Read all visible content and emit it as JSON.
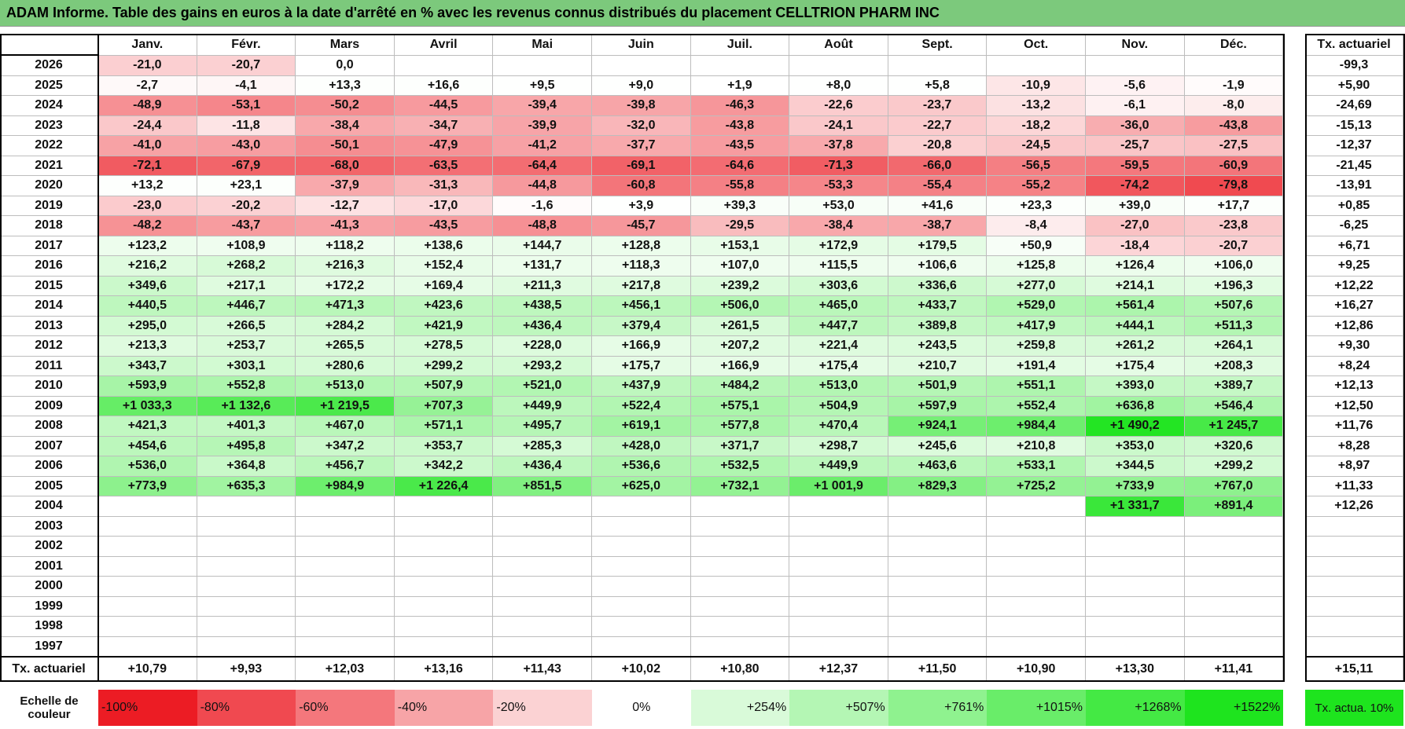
{
  "title": "ADAM Informe. Table des gains en euros à la date d'arrêté en % avec les revenus connus distribués du placement CELLTRION PHARM INC",
  "months": [
    "Janv.",
    "Févr.",
    "Mars",
    "Avril",
    "Mai",
    "Juin",
    "Juil.",
    "Août",
    "Sept.",
    "Oct.",
    "Nov.",
    "Déc."
  ],
  "tx_header": "Tx. actuariel",
  "rows": [
    {
      "year": "2026",
      "values": [
        "-21,0",
        "-20,7",
        "0,0",
        null,
        null,
        null,
        null,
        null,
        null,
        null,
        null,
        null
      ],
      "tx": "-99,3"
    },
    {
      "year": "2025",
      "values": [
        "-2,7",
        "-4,1",
        "+13,3",
        "+16,6",
        "+9,5",
        "+9,0",
        "+1,9",
        "+8,0",
        "+5,8",
        "-10,9",
        "-5,6",
        "-1,9"
      ],
      "tx": "+5,90"
    },
    {
      "year": "2024",
      "values": [
        "-48,9",
        "-53,1",
        "-50,2",
        "-44,5",
        "-39,4",
        "-39,8",
        "-46,3",
        "-22,6",
        "-23,7",
        "-13,2",
        "-6,1",
        "-8,0"
      ],
      "tx": "-24,69"
    },
    {
      "year": "2023",
      "values": [
        "-24,4",
        "-11,8",
        "-38,4",
        "-34,7",
        "-39,9",
        "-32,0",
        "-43,8",
        "-24,1",
        "-22,7",
        "-18,2",
        "-36,0",
        "-43,8"
      ],
      "tx": "-15,13"
    },
    {
      "year": "2022",
      "values": [
        "-41,0",
        "-43,0",
        "-50,1",
        "-47,9",
        "-41,2",
        "-37,7",
        "-43,5",
        "-37,8",
        "-20,8",
        "-24,5",
        "-25,7",
        "-27,5"
      ],
      "tx": "-12,37"
    },
    {
      "year": "2021",
      "values": [
        "-72,1",
        "-67,9",
        "-68,0",
        "-63,5",
        "-64,4",
        "-69,1",
        "-64,6",
        "-71,3",
        "-66,0",
        "-56,5",
        "-59,5",
        "-60,9"
      ],
      "tx": "-21,45"
    },
    {
      "year": "2020",
      "values": [
        "+13,2",
        "+23,1",
        "-37,9",
        "-31,3",
        "-44,8",
        "-60,8",
        "-55,8",
        "-53,3",
        "-55,4",
        "-55,2",
        "-74,2",
        "-79,8"
      ],
      "tx": "-13,91"
    },
    {
      "year": "2019",
      "values": [
        "-23,0",
        "-20,2",
        "-12,7",
        "-17,0",
        "-1,6",
        "+3,9",
        "+39,3",
        "+53,0",
        "+41,6",
        "+23,3",
        "+39,0",
        "+17,7"
      ],
      "tx": "+0,85"
    },
    {
      "year": "2018",
      "values": [
        "-48,2",
        "-43,7",
        "-41,3",
        "-43,5",
        "-48,8",
        "-45,7",
        "-29,5",
        "-38,4",
        "-38,7",
        "-8,4",
        "-27,0",
        "-23,8"
      ],
      "tx": "-6,25"
    },
    {
      "year": "2017",
      "values": [
        "+123,2",
        "+108,9",
        "+118,2",
        "+138,6",
        "+144,7",
        "+128,8",
        "+153,1",
        "+172,9",
        "+179,5",
        "+50,9",
        "-18,4",
        "-20,7"
      ],
      "tx": "+6,71"
    },
    {
      "year": "2016",
      "values": [
        "+216,2",
        "+268,2",
        "+216,3",
        "+152,4",
        "+131,7",
        "+118,3",
        "+107,0",
        "+115,5",
        "+106,6",
        "+125,8",
        "+126,4",
        "+106,0"
      ],
      "tx": "+9,25"
    },
    {
      "year": "2015",
      "values": [
        "+349,6",
        "+217,1",
        "+172,2",
        "+169,4",
        "+211,3",
        "+217,8",
        "+239,2",
        "+303,6",
        "+336,6",
        "+277,0",
        "+214,1",
        "+196,3"
      ],
      "tx": "+12,22"
    },
    {
      "year": "2014",
      "values": [
        "+440,5",
        "+446,7",
        "+471,3",
        "+423,6",
        "+438,5",
        "+456,1",
        "+506,0",
        "+465,0",
        "+433,7",
        "+529,0",
        "+561,4",
        "+507,6"
      ],
      "tx": "+16,27"
    },
    {
      "year": "2013",
      "values": [
        "+295,0",
        "+266,5",
        "+284,2",
        "+421,9",
        "+436,4",
        "+379,4",
        "+261,5",
        "+447,7",
        "+389,8",
        "+417,9",
        "+444,1",
        "+511,3"
      ],
      "tx": "+12,86"
    },
    {
      "year": "2012",
      "values": [
        "+213,3",
        "+253,7",
        "+265,5",
        "+278,5",
        "+228,0",
        "+166,9",
        "+207,2",
        "+221,4",
        "+243,5",
        "+259,8",
        "+261,2",
        "+264,1"
      ],
      "tx": "+9,30"
    },
    {
      "year": "2011",
      "values": [
        "+343,7",
        "+303,1",
        "+280,6",
        "+299,2",
        "+293,2",
        "+175,7",
        "+166,9",
        "+175,4",
        "+210,7",
        "+191,4",
        "+175,4",
        "+208,3"
      ],
      "tx": "+8,24"
    },
    {
      "year": "2010",
      "values": [
        "+593,9",
        "+552,8",
        "+513,0",
        "+507,9",
        "+521,0",
        "+437,9",
        "+484,2",
        "+513,0",
        "+501,9",
        "+551,1",
        "+393,0",
        "+389,7"
      ],
      "tx": "+12,13"
    },
    {
      "year": "2009",
      "values": [
        "+1 033,3",
        "+1 132,6",
        "+1 219,5",
        "+707,3",
        "+449,9",
        "+522,4",
        "+575,1",
        "+504,9",
        "+597,9",
        "+552,4",
        "+636,8",
        "+546,4"
      ],
      "tx": "+12,50"
    },
    {
      "year": "2008",
      "values": [
        "+421,3",
        "+401,3",
        "+467,0",
        "+571,1",
        "+495,7",
        "+619,1",
        "+577,8",
        "+470,4",
        "+924,1",
        "+984,4",
        "+1 490,2",
        "+1 245,7"
      ],
      "tx": "+11,76"
    },
    {
      "year": "2007",
      "values": [
        "+454,6",
        "+495,8",
        "+347,2",
        "+353,7",
        "+285,3",
        "+428,0",
        "+371,7",
        "+298,7",
        "+245,6",
        "+210,8",
        "+353,0",
        "+320,6"
      ],
      "tx": "+8,28"
    },
    {
      "year": "2006",
      "values": [
        "+536,0",
        "+364,8",
        "+456,7",
        "+342,2",
        "+436,4",
        "+536,6",
        "+532,5",
        "+449,9",
        "+463,6",
        "+533,1",
        "+344,5",
        "+299,2"
      ],
      "tx": "+8,97"
    },
    {
      "year": "2005",
      "values": [
        "+773,9",
        "+635,3",
        "+984,9",
        "+1 226,4",
        "+851,5",
        "+625,0",
        "+732,1",
        "+1 001,9",
        "+829,3",
        "+725,2",
        "+733,9",
        "+767,0"
      ],
      "tx": "+11,33"
    },
    {
      "year": "2004",
      "values": [
        null,
        null,
        null,
        null,
        null,
        null,
        null,
        null,
        null,
        null,
        "+1 331,7",
        "+891,4"
      ],
      "tx": "+12,26"
    },
    {
      "year": "2003",
      "values": [
        null,
        null,
        null,
        null,
        null,
        null,
        null,
        null,
        null,
        null,
        null,
        null
      ],
      "tx": null
    },
    {
      "year": "2002",
      "values": [
        null,
        null,
        null,
        null,
        null,
        null,
        null,
        null,
        null,
        null,
        null,
        null
      ],
      "tx": null
    },
    {
      "year": "2001",
      "values": [
        null,
        null,
        null,
        null,
        null,
        null,
        null,
        null,
        null,
        null,
        null,
        null
      ],
      "tx": null
    },
    {
      "year": "2000",
      "values": [
        null,
        null,
        null,
        null,
        null,
        null,
        null,
        null,
        null,
        null,
        null,
        null
      ],
      "tx": null
    },
    {
      "year": "1999",
      "values": [
        null,
        null,
        null,
        null,
        null,
        null,
        null,
        null,
        null,
        null,
        null,
        null
      ],
      "tx": null
    },
    {
      "year": "1998",
      "values": [
        null,
        null,
        null,
        null,
        null,
        null,
        null,
        null,
        null,
        null,
        null,
        null
      ],
      "tx": null
    },
    {
      "year": "1997",
      "values": [
        null,
        null,
        null,
        null,
        null,
        null,
        null,
        null,
        null,
        null,
        null,
        null
      ],
      "tx": null
    }
  ],
  "footer": {
    "label": "Tx. actuariel",
    "values": [
      "+10,79",
      "+9,93",
      "+12,03",
      "+13,16",
      "+11,43",
      "+10,02",
      "+10,80",
      "+12,37",
      "+11,50",
      "+10,90",
      "+13,30",
      "+11,41"
    ],
    "tx": "+15,11"
  },
  "legend": {
    "label": "Echelle de couleur",
    "items": [
      "-100%",
      "-80%",
      "-60%",
      "-40%",
      "-20%",
      "0%",
      "+254%",
      "+507%",
      "+761%",
      "+1015%",
      "+1268%",
      "+1522%"
    ],
    "tx": "Tx. actua. 10%"
  }
}
